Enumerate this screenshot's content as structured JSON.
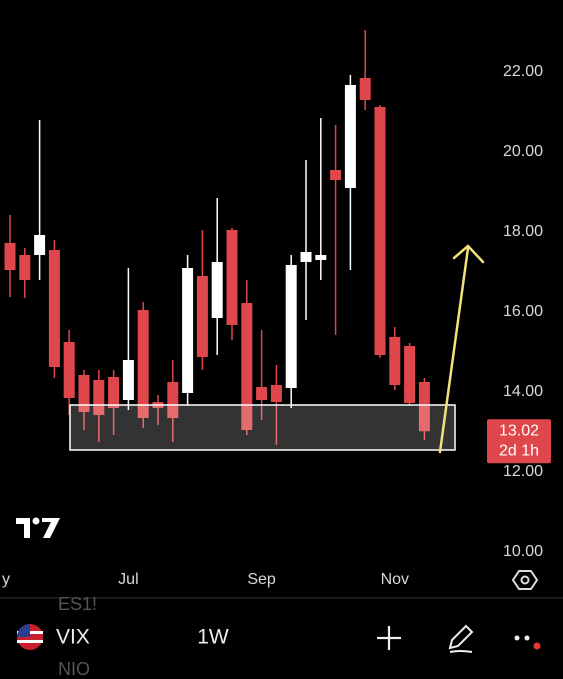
{
  "chart_data": {
    "type": "candlestick",
    "categories": [
      "y",
      null,
      null,
      null,
      null,
      null,
      null,
      null,
      "Jul",
      null,
      null,
      null,
      null,
      null,
      null,
      null,
      null,
      "Sep",
      null,
      null,
      null,
      null,
      null,
      null,
      null,
      null,
      "Nov",
      null,
      null
    ],
    "series": [
      {
        "name": "VIX",
        "up_color": "#ffffff",
        "down_color": "#e0474c",
        "open": [
          17.725,
          17.425,
          17.425,
          17.55,
          15.25,
          14.425,
          14.3,
          14.375,
          13.8,
          16.05,
          13.75,
          14.25,
          13.975,
          16.9,
          15.85,
          18.05,
          16.225,
          14.125,
          14.175,
          14.1,
          17.25,
          17.3,
          19.55,
          19.1,
          21.85,
          21.125,
          15.375,
          15.15,
          14.25
        ],
        "high": [
          18.425,
          17.6,
          20.8,
          17.8,
          15.55,
          14.55,
          14.55,
          14.55,
          17.1,
          16.25,
          13.925,
          14.8,
          17.425,
          18.05,
          18.85,
          18.1,
          16.8,
          15.55,
          14.675,
          17.425,
          19.8,
          20.85,
          20.675,
          21.925,
          23.05,
          21.175,
          15.625,
          15.225,
          14.35
        ],
        "low": [
          16.375,
          16.35,
          16.8,
          14.35,
          13.425,
          13.05,
          12.75,
          12.925,
          13.55,
          13.1,
          13.175,
          12.75,
          13.675,
          14.55,
          14.925,
          15.3,
          12.925,
          13.3,
          12.675,
          13.6,
          15.8,
          16.8,
          15.425,
          17.05,
          21.05,
          14.85,
          14.05,
          13.675,
          12.8
        ],
        "close": [
          17.05,
          16.8,
          17.925,
          14.625,
          13.85,
          13.5,
          13.425,
          13.6,
          14.8,
          13.35,
          13.6,
          13.35,
          17.1,
          14.875,
          17.25,
          15.675,
          13.05,
          13.8,
          13.75,
          17.175,
          17.5,
          17.425,
          19.3,
          21.675,
          21.3,
          14.925,
          14.175,
          13.725,
          13.02
        ]
      }
    ],
    "ylim": [
      9.675,
      23.8
    ],
    "yticks": [
      {
        "value": 10,
        "label": "10.00"
      },
      {
        "value": 12,
        "label": "12.00"
      },
      {
        "value": 14,
        "label": "14.00"
      },
      {
        "value": 16,
        "label": "16.00"
      },
      {
        "value": 18,
        "label": "18.00"
      },
      {
        "value": 20,
        "label": "20.00"
      },
      {
        "value": 22,
        "label": "22.00"
      }
    ],
    "grid": false,
    "last_price": 13.02,
    "countdown": "2d 1h"
  },
  "toolbar": {
    "symbol": "VIX",
    "interval": "1W",
    "list_above": "ES1!",
    "list_below": "NIO"
  }
}
